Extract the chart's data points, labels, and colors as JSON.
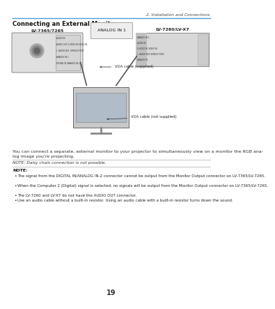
{
  "page_num": "19",
  "chapter": "2. Installation and Connections",
  "section_title": "Connecting an External Monitor",
  "body_text1": "You can connect a separate, external monitor to your projector to simultaneously view on a monitor the RGB ana-",
  "body_text2": "log image you're projecting.",
  "note_simple": "NOTE: Daisy chain connection is not possible.",
  "note_header": "NOTE:",
  "note_bullets": [
    "The signal from the DIGITAL IN/ANALOG IN-2 connector cannot be output from the Monitor Output connector on LV-7365/LV-7265.",
    "When the Computer 2 (Digital) signal is selected, no signals will be output from the Monitor Output connector on LV-7365/LV-7265.",
    "The LV-7260 and LV-X7 do not have the AUDIO OUT connector.",
    "Use an audio cable without a built-in resistor. Using an audio cable with a built-in resistor turns down the sound."
  ],
  "header_line_color": "#4a9fd4",
  "bg_color": "#ffffff",
  "text_color": "#2a2a2a",
  "label_projector1": "LV-7365/7265",
  "label_projector2": "LV-7260/LV-X7",
  "label_analog_in": "ANALOG IN 1",
  "label_vga_supplied": "VGA cable (supplied)",
  "label_vga_not_supplied": "VGA cable (not supplied)",
  "diagram_bg": "#f5f5f5",
  "proj_left_labels": [
    "AUDIO IN",
    "AUDIO OUT  S-VIDEO IN  VIDEO IN",
    "L",
    "AUDIO IN  R  SERVICE PORT",
    "ANALOG IN-1",
    "DIGITAL IN /ANALOG IN-2"
  ],
  "proj_right_labels": [
    "ANALOG IN 1",
    "AUDIO IN ",
    "S-VIDEO IN  VIDEO IN",
    "L",
    "AUDIO IN  R  SERVICE PORT",
    "ANALOG IN"
  ]
}
